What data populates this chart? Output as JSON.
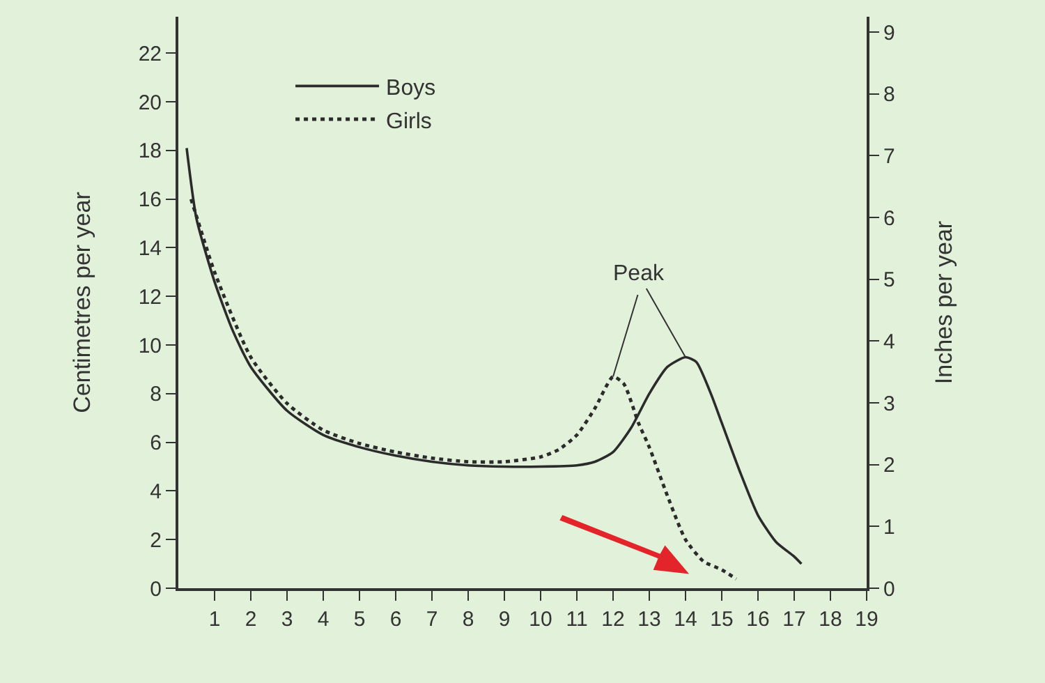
{
  "chart_data": {
    "type": "line",
    "xlabel": null,
    "ylabel": "Centimetres per year",
    "y2label": "Inches per year",
    "series": [
      {
        "name": "Boys",
        "color": "#2b2b2b",
        "line_style": "solid",
        "x": [
          0.23,
          0.5,
          1,
          1.5,
          2,
          3,
          4,
          5,
          6,
          7,
          8,
          9,
          10,
          11,
          11.5,
          12,
          12.5,
          13,
          13.5,
          14,
          14.3,
          14.7,
          15,
          15.5,
          16,
          16.5,
          17,
          17.2
        ],
        "values": [
          18.1,
          15.2,
          12.6,
          10.6,
          9.1,
          7.3,
          6.3,
          5.8,
          5.45,
          5.2,
          5.05,
          5.0,
          5.0,
          5.05,
          5.2,
          5.6,
          6.6,
          8.0,
          9.1,
          9.5,
          9.3,
          8.0,
          6.8,
          4.8,
          3.0,
          1.9,
          1.3,
          1.0
        ]
      },
      {
        "name": "Girls",
        "color": "#2b2b2b",
        "line_style": "dotted",
        "x": [
          0.35,
          0.5,
          1,
          2,
          3,
          4,
          5,
          6,
          7,
          8,
          9,
          10,
          10.5,
          11,
          11.5,
          12,
          12.3,
          12.7,
          13,
          13.5,
          14,
          14.5,
          15,
          15.4
        ],
        "values": [
          16.0,
          15.3,
          13.0,
          9.5,
          7.6,
          6.5,
          5.95,
          5.6,
          5.35,
          5.2,
          5.2,
          5.4,
          5.7,
          6.3,
          7.4,
          8.7,
          8.4,
          6.8,
          5.8,
          3.8,
          2.0,
          1.1,
          0.76,
          0.38
        ]
      }
    ],
    "xlim": [
      0,
      19
    ],
    "xticks": [
      1,
      2,
      3,
      4,
      5,
      6,
      7,
      8,
      9,
      10,
      11,
      12,
      13,
      14,
      15,
      16,
      17,
      18,
      19
    ],
    "ylim": [
      0,
      23.5
    ],
    "yticks": [
      0,
      2,
      4,
      6,
      8,
      10,
      12,
      14,
      16,
      18,
      20,
      22
    ],
    "y2lim": [
      0,
      9.25
    ],
    "y2ticks": [
      0,
      1,
      2,
      3,
      4,
      5,
      6,
      7,
      8,
      9
    ],
    "annotations": [
      {
        "text": "Peak",
        "x": 14,
        "y": 9.5
      }
    ],
    "grid": false,
    "legend": "top left",
    "marker": "none"
  }
}
